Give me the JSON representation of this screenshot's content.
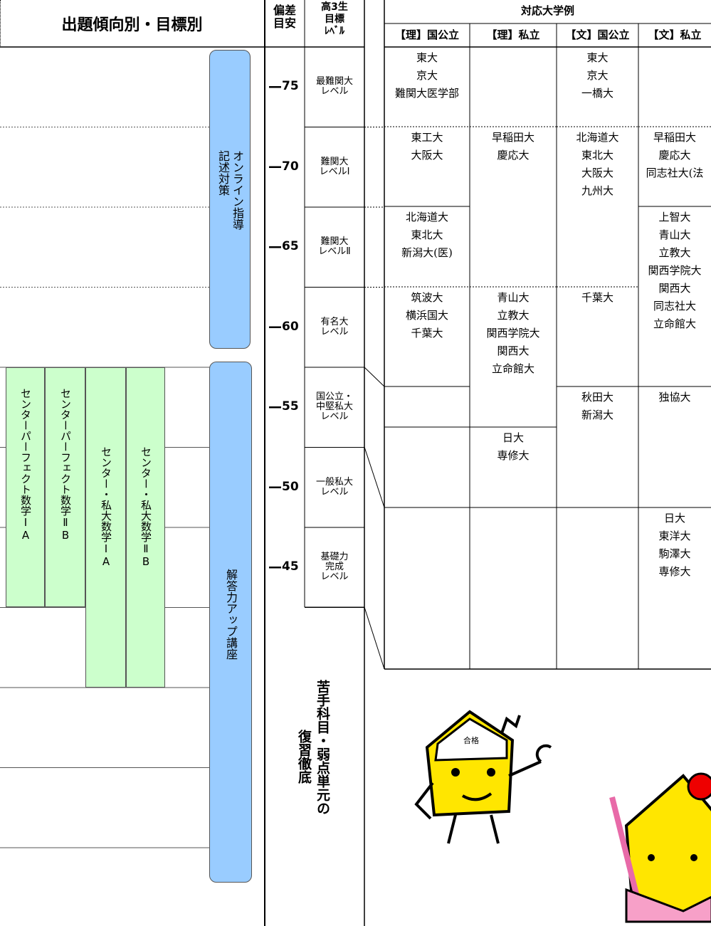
{
  "header": {
    "title": "出題傾向別・目標別",
    "deviation": "偏差\n目安",
    "target": "高3生\n目標\nﾚﾍﾞﾙ",
    "universities": "対応大学例",
    "columns": [
      "【理】国公立",
      "【理】私立",
      "【文】国公立",
      "【文】私立"
    ]
  },
  "levels": [
    {
      "score": 75,
      "label": "最難関大\nレベル"
    },
    {
      "score": 70,
      "label": "難関大\nレベルⅠ"
    },
    {
      "score": 65,
      "label": "難関大\nレベルⅡ"
    },
    {
      "score": 60,
      "label": "有名大\nレベル"
    },
    {
      "score": 55,
      "label": "国公立・\n中堅私大\nレベル"
    },
    {
      "score": 50,
      "label": "一般私大\nレベル"
    },
    {
      "score": 45,
      "label": "基礎力\n完成\nレベル"
    }
  ],
  "courses": {
    "online": "オンライン指導\n記述対策",
    "answer": "解答力アップ講座",
    "center": [
      "センターパーフェクト数学ⅠA",
      "センターパーフェクト数学ⅡB",
      "センター・私大数学ⅠA",
      "センター・私大数学ⅡB"
    ]
  },
  "note": {
    "main": "苦手科目・弱点単元の",
    "sub": "復習徹底"
  },
  "universities": [
    [
      [
        "東大",
        "京大",
        "難関大医学部"
      ],
      [
        "東工大",
        "大阪大"
      ],
      [
        "北海道大",
        "東北大",
        "新潟大(医)"
      ],
      [
        "筑波大",
        "横浜国大",
        "千葉大"
      ],
      [],
      [],
      []
    ],
    [
      [],
      [
        "早稲田大",
        "慶応大"
      ],
      [
        "青山大",
        "立教大",
        "関西学院大",
        "関西大",
        "立命館大"
      ],
      [
        "日大",
        "専修大"
      ],
      []
    ],
    [
      [
        "東大",
        "京大",
        "一橋大"
      ],
      [
        "北海道大",
        "東北大",
        "大阪大",
        "九州大"
      ],
      [
        "千葉大"
      ],
      [
        "秋田大",
        "新潟大"
      ],
      []
    ],
    [
      [],
      [
        "早稲田大",
        "慶応大",
        "同志社大(法"
      ],
      [
        "上智大",
        "青山大",
        "立教大",
        "関西学院大",
        "関西大",
        "同志社大",
        "立命館大"
      ],
      [
        "独協大"
      ],
      [
        "日大",
        "東洋大",
        "駒澤大",
        "専修大"
      ]
    ]
  ],
  "mascot": {
    "badge": "合格"
  }
}
